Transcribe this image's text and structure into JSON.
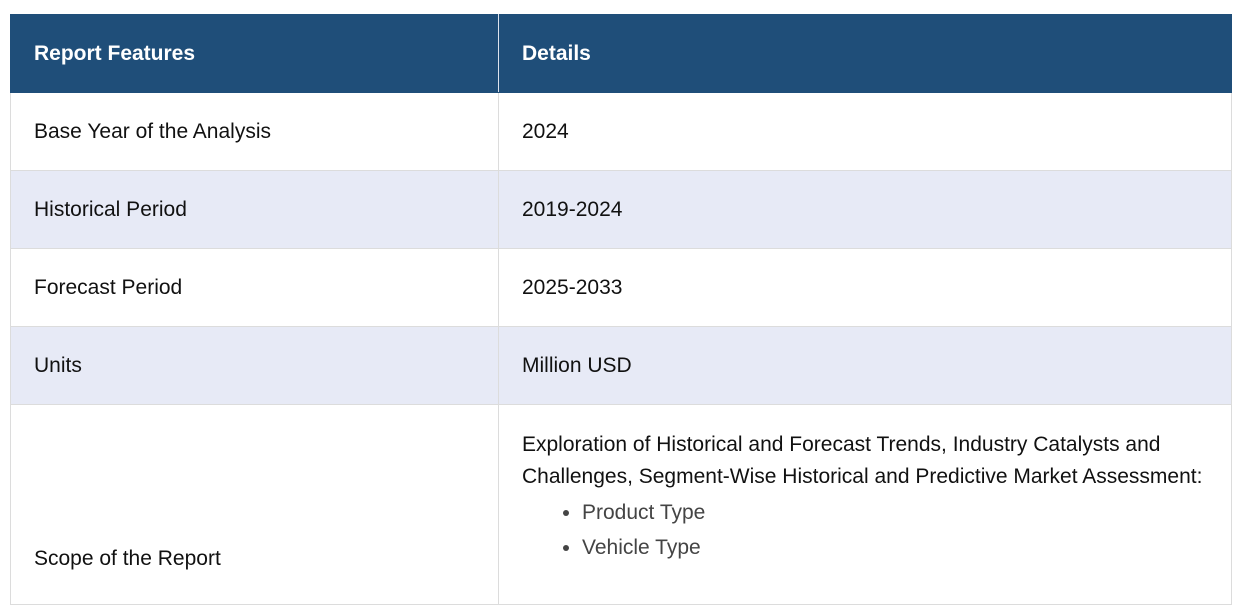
{
  "table": {
    "headers": {
      "feature": "Report Features",
      "details": "Details"
    },
    "rows": [
      {
        "feature": "Base Year of the Analysis",
        "details": "2024"
      },
      {
        "feature": "Historical Period",
        "details": "2019-2024"
      },
      {
        "feature": "Forecast Period",
        "details": "2025-2033"
      },
      {
        "feature": "Units",
        "details": "Million USD"
      }
    ],
    "scope": {
      "feature": "Scope of the Report",
      "details": "Exploration of Historical and Forecast Trends, Industry Catalysts and Challenges, Segment-Wise Historical and Predictive Market Assessment:",
      "items": [
        "Product Type",
        "Vehicle Type"
      ]
    }
  },
  "colors": {
    "header_bg": "#1f4e79",
    "alt_row_bg": "#e7eaf6"
  }
}
